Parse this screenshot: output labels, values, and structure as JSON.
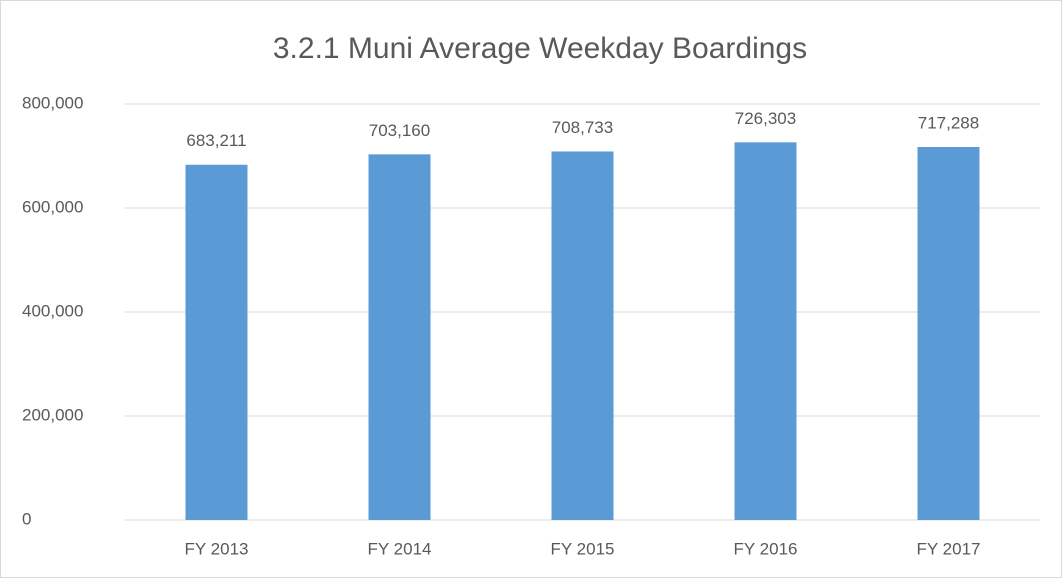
{
  "chart_data": {
    "type": "bar",
    "title": "3.2.1 Muni Average Weekday Boardings",
    "categories": [
      "FY 2013",
      "FY 2014",
      "FY 2015",
      "FY 2016",
      "FY 2017"
    ],
    "values": [
      683211,
      703160,
      708733,
      726303,
      717288
    ],
    "value_labels": [
      "683,211",
      "703,160",
      "708,733",
      "726,303",
      "717,288"
    ],
    "color": "#5b9bd5",
    "ylim": [
      0,
      800000
    ],
    "yticks": [
      0,
      {
        "value": 200000,
        "label": "200,000"
      },
      {
        "value": 400000,
        "label": "400,000"
      },
      {
        "value": 600000,
        "label": "600,000"
      },
      {
        "value": 800000,
        "label": "800,000"
      }
    ],
    "grid": true
  }
}
